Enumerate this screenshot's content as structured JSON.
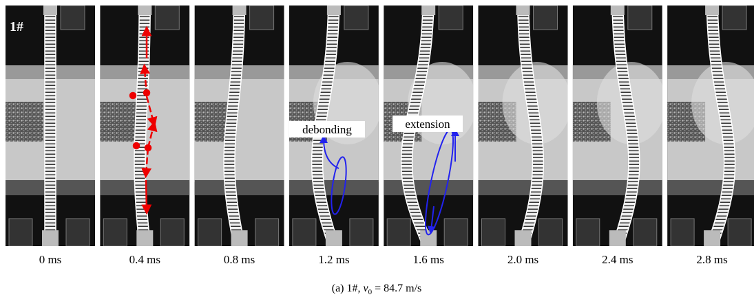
{
  "frames": [
    {
      "time": "0 ms"
    },
    {
      "time": "0.4 ms"
    },
    {
      "time": "0.8 ms"
    },
    {
      "time": "1.2 ms"
    },
    {
      "time": "1.6 ms"
    },
    {
      "time": "2.0 ms"
    },
    {
      "time": "2.4 ms"
    },
    {
      "time": "2.8 ms"
    }
  ],
  "panel_label": "1#",
  "annotations": {
    "debonding": "debonding",
    "extension": "extension"
  },
  "caption": {
    "prefix": "(a) 1#, ",
    "symbol": "v",
    "subscript": "0",
    "suffix": " = 84.7 m/s"
  }
}
